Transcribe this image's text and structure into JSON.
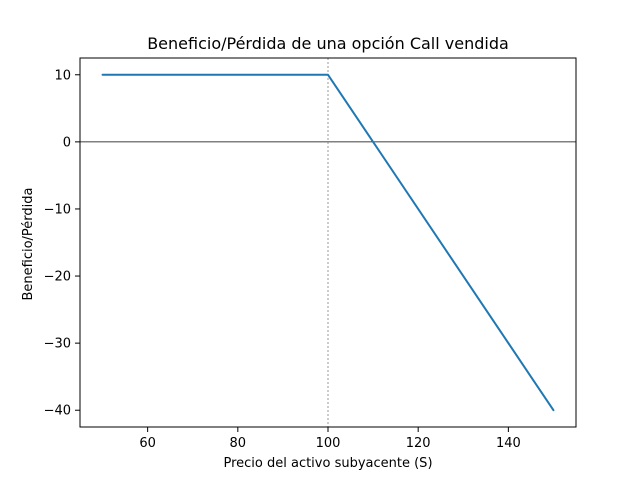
{
  "chart_data": {
    "type": "line",
    "title": "Beneficio/Pérdida de una opción Call vendida",
    "xlabel": "Precio del activo subyacente (S)",
    "ylabel": "Beneficio/Pérdida",
    "xlim": [
      45,
      155
    ],
    "ylim": [
      -42.5,
      12.5
    ],
    "xticks": [
      60,
      80,
      100,
      120,
      140
    ],
    "yticks": [
      10,
      0,
      -10,
      -20,
      -30,
      -40
    ],
    "xtick_labels": [
      "60",
      "80",
      "100",
      "120",
      "140"
    ],
    "ytick_labels": [
      "10",
      "0",
      "−10",
      "−20",
      "−30",
      "−40"
    ],
    "series": [
      {
        "color": "#1f77b4",
        "x": [
          50,
          100,
          150
        ],
        "y": [
          10,
          10,
          -40
        ]
      }
    ],
    "reference_lines": {
      "horizontal_y": 0,
      "vertical_x": 100
    },
    "grid": false,
    "legend": "none"
  }
}
